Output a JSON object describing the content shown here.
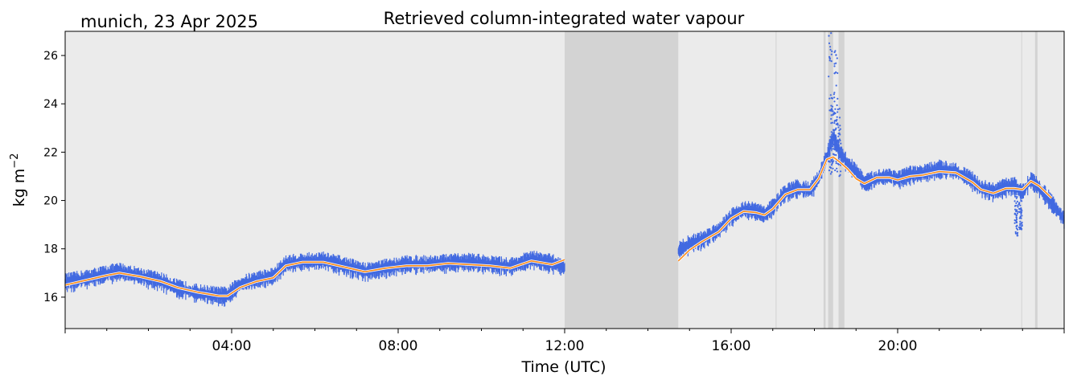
{
  "header": {
    "site_date": "munich, 23 Apr 2025",
    "title": "Retrieved column-integrated water vapour"
  },
  "chart_data": {
    "type": "line",
    "title": "Retrieved column-integrated water vapour",
    "xlabel": "Time (UTC)",
    "ylabel": "kg m",
    "ylabel_exponent": "−2",
    "xlim_hours": [
      0,
      24
    ],
    "ylim": [
      14.7,
      27.0
    ],
    "x_ticks": [
      {
        "hour": 4,
        "label": "04:00"
      },
      {
        "hour": 8,
        "label": "08:00"
      },
      {
        "hour": 12,
        "label": "12:00"
      },
      {
        "hour": 16,
        "label": "16:00"
      },
      {
        "hour": 20,
        "label": "20:00"
      }
    ],
    "y_ticks": [
      16,
      18,
      20,
      22,
      24,
      26
    ],
    "grid": false,
    "background_color": "#ebebeb",
    "gap_color": "#d3d3d3",
    "colors": {
      "raw": "#4169e1",
      "smooth": "#ff8c1a"
    },
    "gaps_hours": [
      [
        12.0,
        14.73
      ],
      [
        17.07,
        17.08
      ],
      [
        18.22,
        18.27
      ],
      [
        18.33,
        18.45
      ],
      [
        18.58,
        18.72
      ],
      [
        22.97,
        22.98
      ],
      [
        23.3,
        23.36
      ]
    ],
    "series": [
      {
        "style": "raw-scatter",
        "segments": [
          {
            "x": [
              0.0,
              0.5,
              1.0,
              1.3,
              1.8,
              2.3,
              2.7,
              3.2,
              3.7,
              3.9,
              4.2,
              4.6,
              5.0,
              5.3,
              5.7,
              6.2,
              6.7,
              7.2,
              7.7,
              8.2,
              8.7,
              9.2,
              9.7,
              10.2,
              10.7,
              11.2,
              11.7,
              12.0
            ],
            "y": [
              16.6,
              16.75,
              16.95,
              17.05,
              16.85,
              16.65,
              16.35,
              16.15,
              16.05,
              16.05,
              16.5,
              16.7,
              16.85,
              17.35,
              17.45,
              17.5,
              17.3,
              17.05,
              17.2,
              17.35,
              17.35,
              17.4,
              17.45,
              17.35,
              17.25,
              17.55,
              17.4,
              17.2
            ]
          },
          {
            "x": [
              14.73,
              15.0,
              15.3,
              15.7,
              16.0,
              16.3,
              16.6,
              16.8,
              17.0,
              17.3,
              17.6,
              17.9,
              18.1,
              18.3,
              18.45,
              18.6,
              18.8,
              19.0,
              19.2,
              19.5,
              19.8,
              20.0,
              20.3,
              20.6,
              21.0,
              21.4,
              21.8,
              22.0,
              22.3,
              22.6,
              22.8,
              23.0,
              23.2,
              23.4,
              23.7,
              24.0
            ],
            "y": [
              17.9,
              18.2,
              18.35,
              18.75,
              19.3,
              19.6,
              19.55,
              19.4,
              19.7,
              20.3,
              20.5,
              20.4,
              20.9,
              21.8,
              22.6,
              22.0,
              21.5,
              21.2,
              20.7,
              20.9,
              21.0,
              20.85,
              21.05,
              21.1,
              21.3,
              21.2,
              20.8,
              20.5,
              20.35,
              20.55,
              20.6,
              20.3,
              20.85,
              20.5,
              19.9,
              19.2
            ]
          }
        ],
        "spikes": [
          {
            "x": 18.38,
            "y_min": 21.0,
            "y_max": 27.0
          },
          {
            "x": 18.52,
            "y_min": 21.2,
            "y_max": 26.6
          },
          {
            "x": 18.45,
            "y_min": 21.3,
            "y_max": 24.5
          },
          {
            "x": 18.6,
            "y_min": 21.0,
            "y_max": 23.8
          },
          {
            "x": 22.85,
            "y_min": 18.5,
            "y_max": 20.2
          },
          {
            "x": 22.95,
            "y_min": 18.8,
            "y_max": 20.0
          }
        ]
      },
      {
        "style": "smoothed-line",
        "segments": [
          {
            "x": [
              0.0,
              0.5,
              1.0,
              1.3,
              1.8,
              2.3,
              2.7,
              3.2,
              3.7,
              3.9,
              4.2,
              4.6,
              5.0,
              5.3,
              5.7,
              6.2,
              6.7,
              7.2,
              7.7,
              8.2,
              8.7,
              9.2,
              9.7,
              10.2,
              10.7,
              11.2,
              11.7,
              12.0
            ],
            "y": [
              16.5,
              16.7,
              16.9,
              17.0,
              16.85,
              16.65,
              16.4,
              16.2,
              16.05,
              16.05,
              16.4,
              16.65,
              16.8,
              17.3,
              17.45,
              17.45,
              17.25,
              17.05,
              17.2,
              17.3,
              17.3,
              17.4,
              17.35,
              17.3,
              17.2,
              17.5,
              17.35,
              17.55
            ]
          },
          {
            "x": [
              14.73,
              15.0,
              15.3,
              15.7,
              16.0,
              16.3,
              16.6,
              16.8,
              17.0,
              17.3,
              17.6,
              17.9,
              18.1,
              18.3,
              18.45,
              18.6,
              18.8,
              19.0,
              19.2,
              19.5,
              19.8,
              20.0,
              20.3,
              20.6,
              21.0,
              21.4,
              21.8,
              22.0,
              22.3,
              22.6,
              22.8,
              23.0,
              23.2,
              23.4,
              23.7
            ],
            "y": [
              17.5,
              17.95,
              18.3,
              18.7,
              19.25,
              19.55,
              19.5,
              19.4,
              19.65,
              20.25,
              20.45,
              20.45,
              20.9,
              21.7,
              21.8,
              21.6,
              21.3,
              20.9,
              20.7,
              20.95,
              20.95,
              20.85,
              21.0,
              21.05,
              21.2,
              21.15,
              20.75,
              20.45,
              20.3,
              20.5,
              20.5,
              20.45,
              20.8,
              20.6,
              20.1
            ]
          }
        ]
      }
    ]
  }
}
